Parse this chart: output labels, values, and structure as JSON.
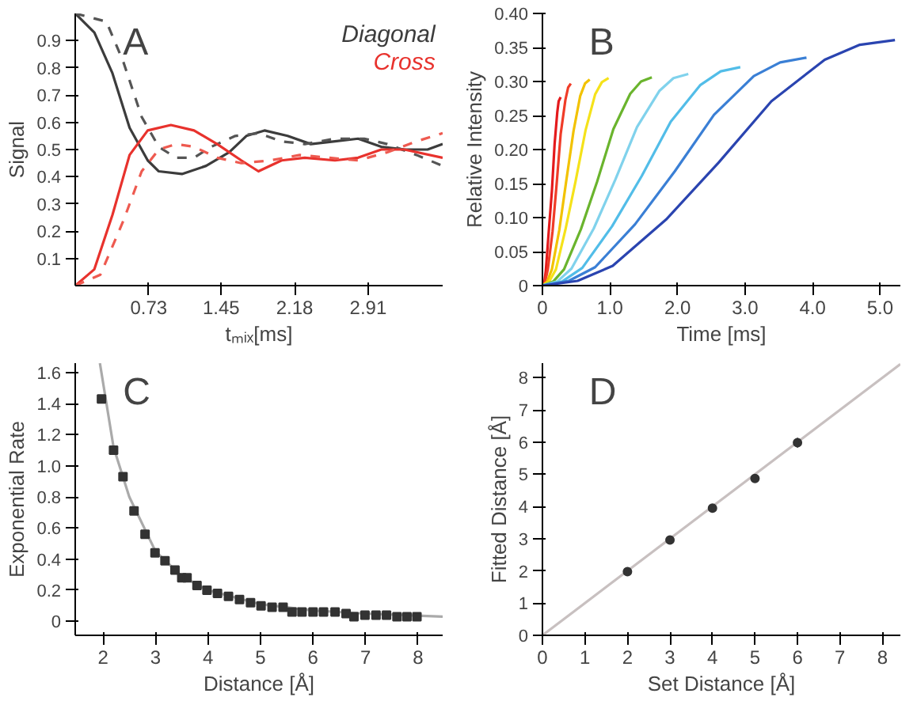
{
  "chart_data": [
    {
      "type": "line",
      "xlabel": "tₘᵢₓ[ms]",
      "ylabel": "Signal",
      "annotations": [
        "A"
      ],
      "xlim": [
        0,
        3.65
      ],
      "ylim": [
        0,
        1.0
      ],
      "xticks": [
        0.73,
        1.45,
        2.18,
        2.91
      ],
      "yticks": [
        0.1,
        0.2,
        0.3,
        0.4,
        0.5,
        0.6,
        0.7,
        0.8,
        0.9
      ],
      "grid": false,
      "legend": "top right",
      "series": [
        {
          "name": "Diagonal",
          "color": "#3c3c3c",
          "x": [
            0,
            0.19,
            0.37,
            0.54,
            0.72,
            0.83,
            1.06,
            1.3,
            1.53,
            1.7,
            1.88,
            2.11,
            2.34,
            2.58,
            2.81,
            3.04,
            3.27,
            3.5,
            3.65
          ],
          "values": [
            1.0,
            0.93,
            0.78,
            0.58,
            0.46,
            0.42,
            0.41,
            0.44,
            0.49,
            0.55,
            0.57,
            0.55,
            0.52,
            0.53,
            0.54,
            0.51,
            0.5,
            0.5,
            0.52
          ]
        },
        {
          "color": "#555555",
          "line_style": "dashed",
          "x": [
            0,
            0.31,
            0.48,
            0.66,
            0.83,
            1.0,
            1.18,
            1.35,
            1.59,
            1.82,
            2.05,
            2.28,
            2.58,
            2.87,
            3.1,
            3.39,
            3.65
          ],
          "values": [
            1.0,
            0.97,
            0.82,
            0.62,
            0.51,
            0.47,
            0.47,
            0.51,
            0.55,
            0.56,
            0.53,
            0.52,
            0.54,
            0.54,
            0.52,
            0.48,
            0.44
          ]
        },
        {
          "name": "Cross",
          "color": "#e8322d",
          "x": [
            0,
            0.19,
            0.37,
            0.54,
            0.72,
            0.95,
            1.18,
            1.41,
            1.65,
            1.82,
            2.05,
            2.28,
            2.58,
            2.81,
            3.04,
            3.27,
            3.65
          ],
          "values": [
            0,
            0.06,
            0.26,
            0.48,
            0.57,
            0.59,
            0.57,
            0.52,
            0.46,
            0.42,
            0.46,
            0.47,
            0.46,
            0.47,
            0.5,
            0.5,
            0.47
          ]
        },
        {
          "color": "#ee5a50",
          "line_style": "dashed",
          "x": [
            0,
            0.25,
            0.48,
            0.66,
            0.83,
            1.0,
            1.18,
            1.41,
            1.65,
            1.94,
            2.23,
            2.52,
            2.81,
            3.1,
            3.39,
            3.65
          ],
          "values": [
            0,
            0.04,
            0.24,
            0.42,
            0.5,
            0.52,
            0.51,
            0.47,
            0.45,
            0.46,
            0.48,
            0.47,
            0.46,
            0.49,
            0.53,
            0.56
          ]
        }
      ]
    },
    {
      "type": "line",
      "xlabel": "Time [ms]",
      "ylabel": "Relative Intensity",
      "annotations": [
        "B"
      ],
      "xlim": [
        0,
        5.3
      ],
      "ylim": [
        0,
        0.4
      ],
      "xticks": [
        0,
        {
          "value": 1,
          "label": "1.0"
        },
        {
          "value": 2,
          "label": "2.0"
        },
        {
          "value": 3,
          "label": "3.0"
        },
        {
          "value": 4,
          "label": "4.0"
        },
        {
          "value": 5,
          "label": "5.0"
        }
      ],
      "yticks": [
        0,
        0.05,
        {
          "value": 0.1,
          "label": "0.10"
        },
        0.15,
        {
          "value": 0.2,
          "label": "0.20"
        },
        0.25,
        {
          "value": 0.3,
          "label": "0.30"
        },
        0.35,
        {
          "value": 0.4,
          "label": "0.40"
        }
      ],
      "grid": false,
      "series": [
        {
          "color": "#e41a1c",
          "x": [
            0,
            0.03,
            0.05,
            0.09,
            0.14,
            0.18,
            0.22,
            0.24,
            0.27
          ],
          "values": [
            0,
            0.006,
            0.022,
            0.075,
            0.139,
            0.208,
            0.255,
            0.271,
            0.277
          ]
        },
        {
          "color": "#f03c28",
          "x": [
            0,
            0.04,
            0.08,
            0.15,
            0.21,
            0.27,
            0.34,
            0.38,
            0.42
          ],
          "values": [
            0,
            0.006,
            0.024,
            0.08,
            0.149,
            0.223,
            0.273,
            0.291,
            0.297
          ]
        },
        {
          "color": "#f2c200",
          "x": [
            0,
            0.07,
            0.14,
            0.25,
            0.35,
            0.46,
            0.56,
            0.63,
            0.7
          ],
          "values": [
            0,
            0.006,
            0.024,
            0.082,
            0.152,
            0.227,
            0.279,
            0.297,
            0.303
          ]
        },
        {
          "color": "#f5e21a",
          "x": [
            0,
            0.1,
            0.2,
            0.34,
            0.49,
            0.64,
            0.78,
            0.88,
            0.98
          ],
          "values": [
            0,
            0.006,
            0.024,
            0.082,
            0.153,
            0.229,
            0.281,
            0.299,
            0.305
          ]
        },
        {
          "color": "#6ab42d",
          "x": [
            0,
            0.16,
            0.32,
            0.57,
            0.81,
            1.05,
            1.3,
            1.46,
            1.62
          ],
          "values": [
            0,
            0.006,
            0.024,
            0.083,
            0.153,
            0.23,
            0.282,
            0.3,
            0.306
          ]
        },
        {
          "color": "#80d2ec",
          "x": [
            0,
            0.22,
            0.43,
            0.76,
            1.08,
            1.4,
            1.73,
            1.94,
            2.16
          ],
          "values": [
            0,
            0.006,
            0.025,
            0.084,
            0.156,
            0.233,
            0.286,
            0.305,
            0.311
          ]
        },
        {
          "color": "#52bde8",
          "x": [
            0,
            0.29,
            0.59,
            1.03,
            1.47,
            1.9,
            2.34,
            2.64,
            2.93
          ],
          "values": [
            0,
            0.006,
            0.026,
            0.087,
            0.161,
            0.241,
            0.295,
            0.315,
            0.321
          ]
        },
        {
          "color": "#3a7fd5",
          "x": [
            0,
            0.39,
            0.78,
            1.37,
            1.96,
            2.54,
            3.13,
            3.52,
            3.91
          ],
          "values": [
            0,
            0.007,
            0.027,
            0.09,
            0.168,
            0.251,
            0.308,
            0.328,
            0.335
          ]
        },
        {
          "color": "#2a44b0",
          "x": [
            0,
            0.52,
            1.04,
            1.83,
            2.61,
            3.39,
            4.18,
            4.7,
            5.22
          ],
          "values": [
            0,
            0.007,
            0.029,
            0.097,
            0.181,
            0.271,
            0.332,
            0.354,
            0.361
          ]
        }
      ]
    },
    {
      "type": "scatter",
      "xlabel": "Distance [Å]",
      "ylabel": "Exponential Rate",
      "annotations": [
        "C"
      ],
      "xlim": [
        1.47,
        8.47
      ],
      "ylim": [
        -0.09,
        1.66
      ],
      "xticks": [
        2,
        3,
        4,
        5,
        6,
        7,
        8
      ],
      "yticks": [
        0,
        0.2,
        0.4,
        0.6,
        0.8,
        {
          "value": 1.0,
          "label": "1.0"
        },
        1.2,
        1.4,
        1.6
      ],
      "grid": false,
      "series": [
        {
          "type": "line",
          "color": "#aaaaaa",
          "x": [
            1.94,
            2.2,
            2.5,
            3.0,
            3.5,
            4.0,
            5.0,
            6.0,
            7.0,
            8.47
          ],
          "values": [
            1.66,
            1.12,
            0.8,
            0.45,
            0.29,
            0.2,
            0.11,
            0.07,
            0.05,
            0.03
          ]
        },
        {
          "color": "#333333",
          "marker": "square",
          "x": [
            1.97,
            2.2,
            2.38,
            2.59,
            2.8,
            2.99,
            3.18,
            3.37,
            3.5,
            3.6,
            3.79,
            3.98,
            4.18,
            4.39,
            4.6,
            4.81,
            5.01,
            5.22,
            5.43,
            5.6,
            5.79,
            6.0,
            6.2,
            6.42,
            6.63,
            6.78,
            6.99,
            7.2,
            7.4,
            7.6,
            7.79,
            7.98
          ],
          "values": [
            1.43,
            1.1,
            0.93,
            0.71,
            0.56,
            0.44,
            0.39,
            0.33,
            0.28,
            0.28,
            0.23,
            0.2,
            0.18,
            0.16,
            0.14,
            0.12,
            0.1,
            0.09,
            0.09,
            0.06,
            0.06,
            0.06,
            0.06,
            0.06,
            0.05,
            0.03,
            0.04,
            0.04,
            0.04,
            0.03,
            0.03,
            0.03
          ]
        }
      ]
    },
    {
      "type": "scatter",
      "xlabel": "Set Distance [Å]",
      "ylabel": "Fitted Distance [Å]",
      "annotations": [
        "D"
      ],
      "xlim": [
        0,
        8.42
      ],
      "ylim": [
        0,
        8.45
      ],
      "xticks": [
        0,
        1,
        2,
        3,
        4,
        5,
        6,
        7,
        8
      ],
      "yticks": [
        0,
        1,
        2,
        3,
        4,
        5,
        6,
        7,
        8
      ],
      "grid": false,
      "series": [
        {
          "type": "line",
          "color": "#c8c0c0",
          "x": [
            0,
            8.42
          ],
          "values": [
            0,
            8.42
          ]
        },
        {
          "color": "#333333",
          "marker": "circle",
          "x": [
            2,
            3,
            4,
            5,
            6
          ],
          "values": [
            1.98,
            2.96,
            3.95,
            4.87,
            5.98
          ],
          "errors": [
            0.08,
            0.08,
            0.08,
            0.1,
            0.15
          ]
        }
      ]
    }
  ]
}
